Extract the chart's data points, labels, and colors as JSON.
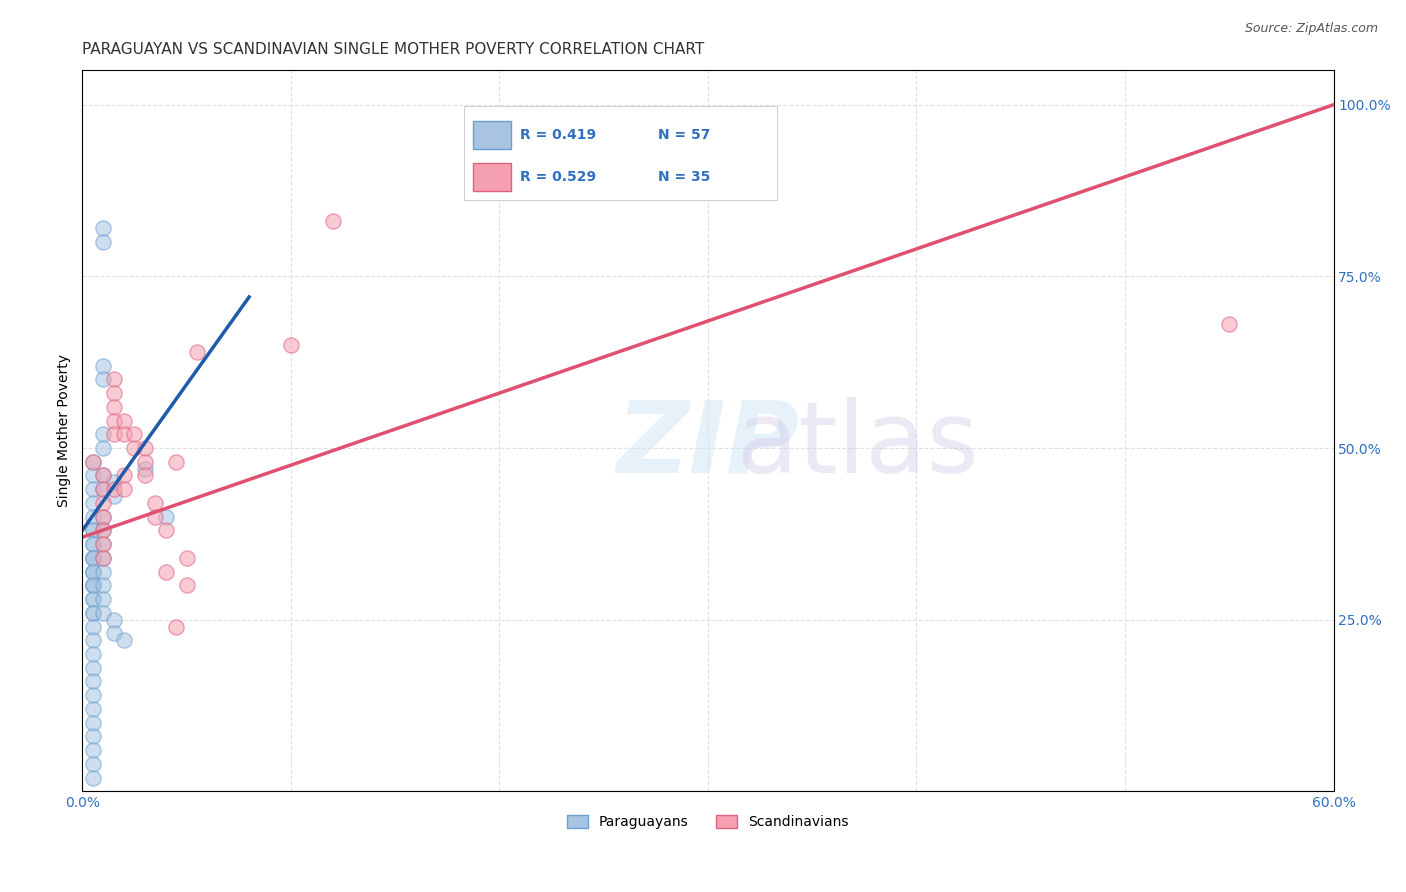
{
  "title": "PARAGUAYAN VS SCANDINAVIAN SINGLE MOTHER POVERTY CORRELATION CHART",
  "source": "Source: ZipAtlas.com",
  "xlabel": "",
  "ylabel": "Single Mother Poverty",
  "xlim": [
    0.0,
    0.6
  ],
  "ylim": [
    0.0,
    1.05
  ],
  "xticks": [
    0.0,
    0.1,
    0.2,
    0.3,
    0.4,
    0.5,
    0.6
  ],
  "xticklabels": [
    "0.0%",
    "",
    "",
    "",
    "",
    "",
    "60.0%"
  ],
  "yticks_right": [
    0.25,
    0.5,
    0.75,
    1.0
  ],
  "ytick_labels_right": [
    "25.0%",
    "50.0%",
    "75.0%",
    "100.0%"
  ],
  "paraguayan_color": "#a8c4e0",
  "scandinavian_color": "#f4a0b0",
  "paraguayan_edge": "#6aa0d0",
  "scandinavian_edge": "#e06080",
  "blue_line_color": "#1e5ba8",
  "pink_line_color": "#e05070",
  "watermark_zip": "ZIP",
  "watermark_atlas": "atlas",
  "legend_r_blue": "R = 0.419",
  "legend_n_blue": "N = 57",
  "legend_r_pink": "R = 0.529",
  "legend_n_pink": "N = 35",
  "paraguayan_x": [
    0.01,
    0.01,
    0.01,
    0.01,
    0.01,
    0.01,
    0.005,
    0.005,
    0.005,
    0.005,
    0.005,
    0.005,
    0.005,
    0.005,
    0.005,
    0.005,
    0.005,
    0.005,
    0.005,
    0.005,
    0.005,
    0.005,
    0.005,
    0.005,
    0.005,
    0.005,
    0.005,
    0.005,
    0.005,
    0.005,
    0.005,
    0.005,
    0.005,
    0.005,
    0.005,
    0.005,
    0.005,
    0.005,
    0.005,
    0.005,
    0.01,
    0.01,
    0.01,
    0.01,
    0.01,
    0.01,
    0.01,
    0.01,
    0.01,
    0.01,
    0.015,
    0.015,
    0.015,
    0.015,
    0.02,
    0.03,
    0.04
  ],
  "paraguayan_y": [
    0.82,
    0.8,
    0.62,
    0.6,
    0.52,
    0.5,
    0.48,
    0.46,
    0.44,
    0.42,
    0.4,
    0.38,
    0.38,
    0.36,
    0.36,
    0.34,
    0.34,
    0.32,
    0.32,
    0.3,
    0.3,
    0.28,
    0.28,
    0.26,
    0.26,
    0.24,
    0.22,
    0.2,
    0.18,
    0.16,
    0.14,
    0.12,
    0.1,
    0.08,
    0.06,
    0.04,
    0.02,
    0.34,
    0.32,
    0.3,
    0.46,
    0.44,
    0.4,
    0.38,
    0.36,
    0.34,
    0.32,
    0.3,
    0.28,
    0.26,
    0.45,
    0.43,
    0.25,
    0.23,
    0.22,
    0.47,
    0.4
  ],
  "scandinavian_x": [
    0.005,
    0.01,
    0.01,
    0.01,
    0.01,
    0.01,
    0.01,
    0.01,
    0.015,
    0.015,
    0.015,
    0.015,
    0.015,
    0.015,
    0.02,
    0.02,
    0.02,
    0.02,
    0.025,
    0.025,
    0.03,
    0.03,
    0.03,
    0.035,
    0.035,
    0.04,
    0.04,
    0.045,
    0.045,
    0.05,
    0.05,
    0.055,
    0.1,
    0.12,
    0.55
  ],
  "scandinavian_y": [
    0.48,
    0.46,
    0.44,
    0.42,
    0.4,
    0.38,
    0.36,
    0.34,
    0.6,
    0.58,
    0.56,
    0.54,
    0.52,
    0.44,
    0.54,
    0.52,
    0.46,
    0.44,
    0.52,
    0.5,
    0.5,
    0.48,
    0.46,
    0.42,
    0.4,
    0.38,
    0.32,
    0.48,
    0.24,
    0.34,
    0.3,
    0.64,
    0.65,
    0.83,
    0.68
  ],
  "blue_line_x": [
    0.0,
    0.08
  ],
  "blue_line_y": [
    0.38,
    0.72
  ],
  "pink_line_x": [
    0.0,
    0.6
  ],
  "pink_line_y": [
    0.37,
    1.0
  ],
  "grid_color": "#e0e0e0",
  "background_color": "#ffffff",
  "title_fontsize": 11,
  "axis_label_fontsize": 10,
  "tick_fontsize": 10,
  "legend_fontsize": 11,
  "marker_size": 120,
  "marker_alpha": 0.55
}
